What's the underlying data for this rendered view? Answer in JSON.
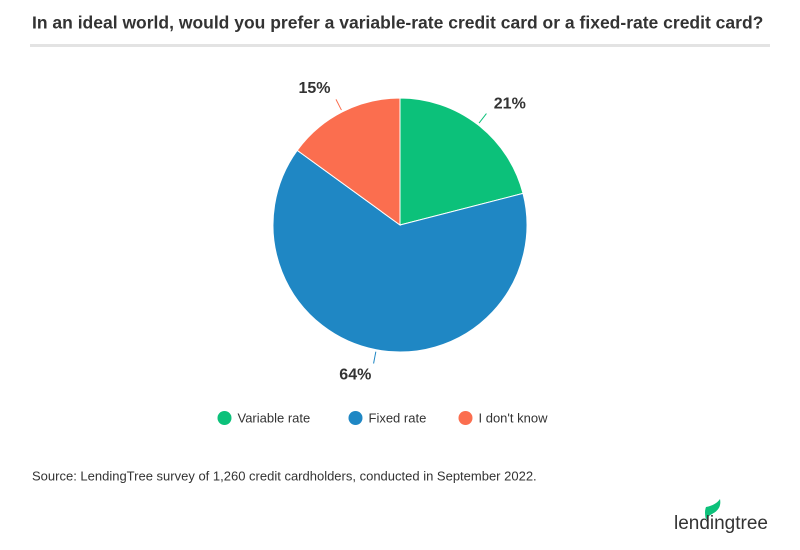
{
  "chart_data": {
    "type": "pie",
    "title": "In an ideal world, would you prefer a variable-rate credit card or a fixed-rate credit card?",
    "categories": [
      "Variable rate",
      "Fixed rate",
      "I don't know"
    ],
    "values": [
      21,
      64,
      15
    ],
    "value_labels": [
      "21%",
      "64%",
      "15%"
    ],
    "colors": [
      "#0cc17a",
      "#1f87c4",
      "#fb6e4f"
    ],
    "legend": "bottom",
    "source": "Source: LendingTree survey of 1,260 credit cardholders, conducted in September 2022."
  },
  "logo": "lendingtree"
}
